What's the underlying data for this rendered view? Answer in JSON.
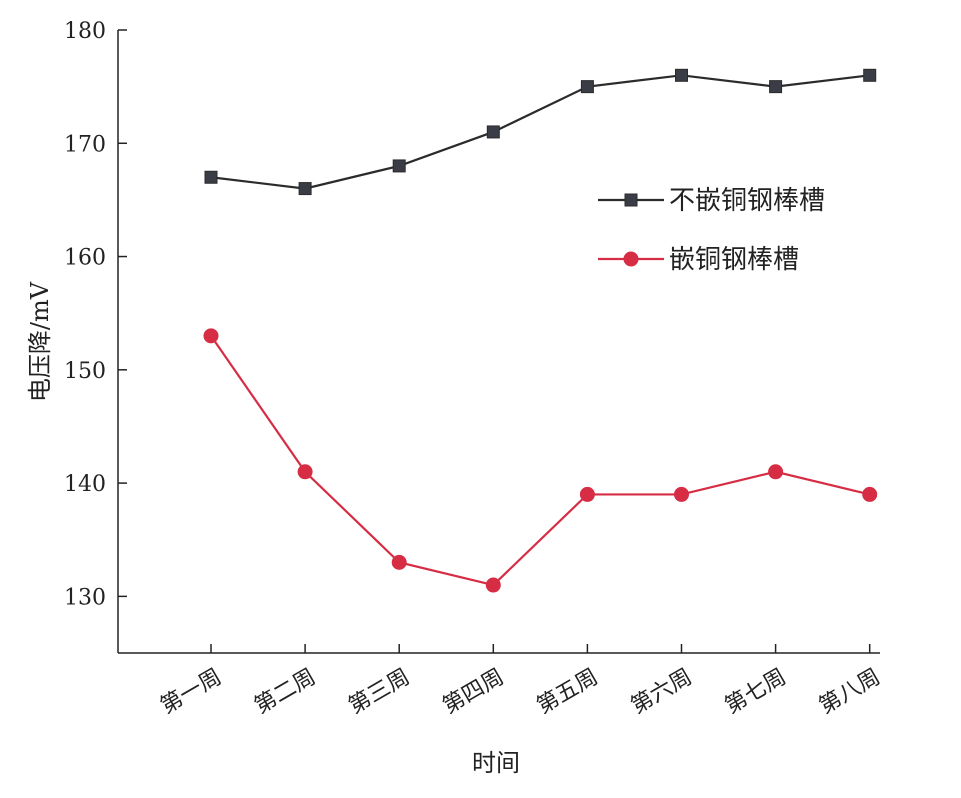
{
  "chart_data": {
    "type": "line",
    "categories": [
      "第一周",
      "第二周",
      "第三周",
      "第四周",
      "第五周",
      "第六周",
      "第七周",
      "第八周"
    ],
    "series": [
      {
        "name": "不嵌铜钢棒槽",
        "values": [
          167,
          166,
          168,
          171,
          175,
          176,
          175,
          176
        ],
        "color": "#2b2b2b",
        "marker": "square"
      },
      {
        "name": "嵌铜钢棒槽",
        "values": [
          153,
          141,
          133,
          131,
          139,
          139,
          141,
          139
        ],
        "color": "#d62d45",
        "marker": "circle"
      }
    ],
    "xlabel": "时间",
    "ylabel": "电压降/mV",
    "ylim": [
      125,
      180
    ],
    "yticks": [
      130,
      140,
      150,
      160,
      170,
      180
    ],
    "grid": false,
    "legend_position": "top-right"
  }
}
